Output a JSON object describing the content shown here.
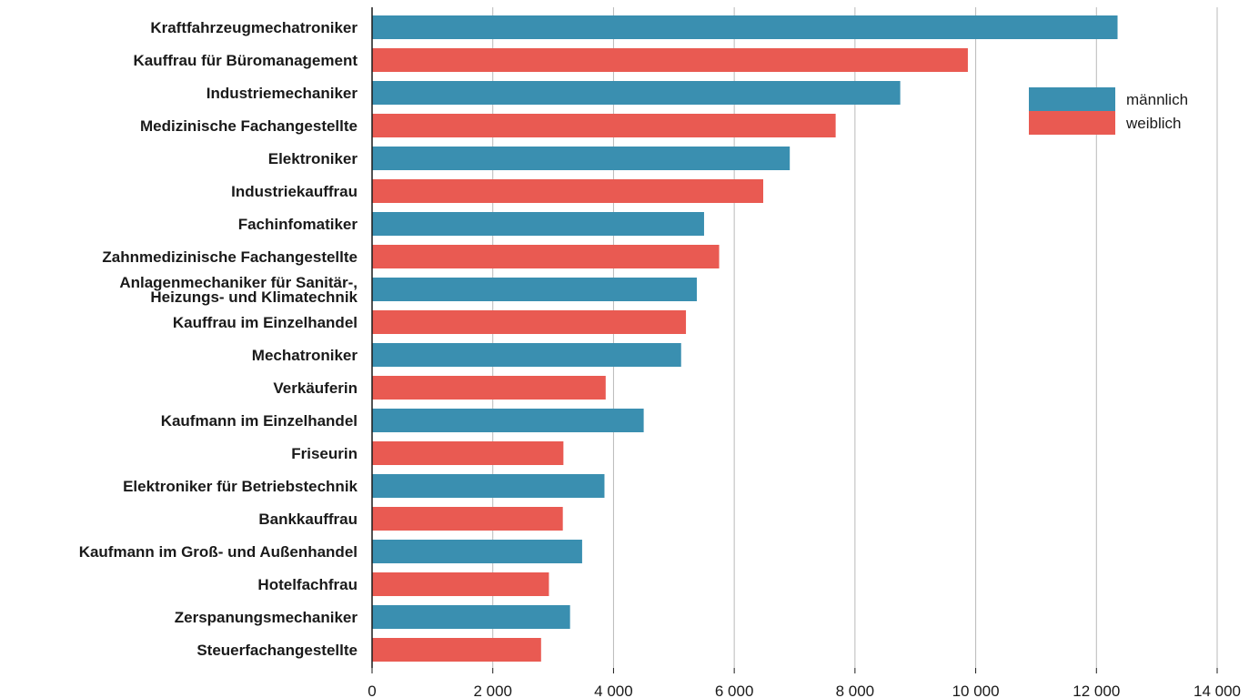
{
  "chart_data": {
    "type": "bar",
    "orientation": "horizontal",
    "title": "",
    "xlabel": "",
    "ylabel": "",
    "xlim": [
      0,
      14000
    ],
    "x_ticks": [
      0,
      2000,
      4000,
      6000,
      8000,
      10000,
      12000,
      14000
    ],
    "x_tick_labels": [
      "0",
      "2 000",
      "4 000",
      "6 000",
      "8 000",
      "10 000",
      "12 000",
      "14 000"
    ],
    "grid": "vertical",
    "legend_position": "top-right",
    "series_colors": {
      "männlich": "#3a8fb0",
      "weiblich": "#e95a52"
    },
    "legend": [
      {
        "name": "männlich",
        "color": "#3a8fb0"
      },
      {
        "name": "weiblich",
        "color": "#e95a52"
      }
    ],
    "bars": [
      {
        "label": "Kraftfahrzeugmechatroniker",
        "value": 12350,
        "series": "männlich"
      },
      {
        "label": "Kauffrau für Büromanagement",
        "value": 9870,
        "series": "weiblich"
      },
      {
        "label": "Industriemechaniker",
        "value": 8750,
        "series": "männlich"
      },
      {
        "label": "Medizinische Fachangestellte",
        "value": 7680,
        "series": "weiblich"
      },
      {
        "label": "Elektroniker",
        "value": 6920,
        "series": "männlich"
      },
      {
        "label": "Industriekauffrau",
        "value": 6480,
        "series": "weiblich"
      },
      {
        "label": "Fachinfomatiker",
        "value": 5500,
        "series": "männlich"
      },
      {
        "label": "Zahnmedizinische Fachangestellte",
        "value": 5750,
        "series": "weiblich"
      },
      {
        "label": "Anlagenmechaniker für Sanitär-,\nHeizungs- und Klimatechnik",
        "value": 5380,
        "series": "männlich"
      },
      {
        "label": "Kauffrau im Einzelhandel",
        "value": 5200,
        "series": "weiblich"
      },
      {
        "label": "Mechatroniker",
        "value": 5120,
        "series": "männlich"
      },
      {
        "label": "Verkäuferin",
        "value": 3870,
        "series": "weiblich"
      },
      {
        "label": "Kaufmann im Einzelhandel",
        "value": 4500,
        "series": "männlich"
      },
      {
        "label": "Friseurin",
        "value": 3170,
        "series": "weiblich"
      },
      {
        "label": "Elektroniker für Betriebstechnik",
        "value": 3850,
        "series": "männlich"
      },
      {
        "label": "Bankkauffrau",
        "value": 3160,
        "series": "weiblich"
      },
      {
        "label": "Kaufmann im Groß- und Außenhandel",
        "value": 3480,
        "series": "männlich"
      },
      {
        "label": "Hotelfachfrau",
        "value": 2930,
        "series": "weiblich"
      },
      {
        "label": "Zerspanungsmechaniker",
        "value": 3280,
        "series": "männlich"
      },
      {
        "label": "Steuerfachangestellte",
        "value": 2800,
        "series": "weiblich"
      }
    ]
  }
}
